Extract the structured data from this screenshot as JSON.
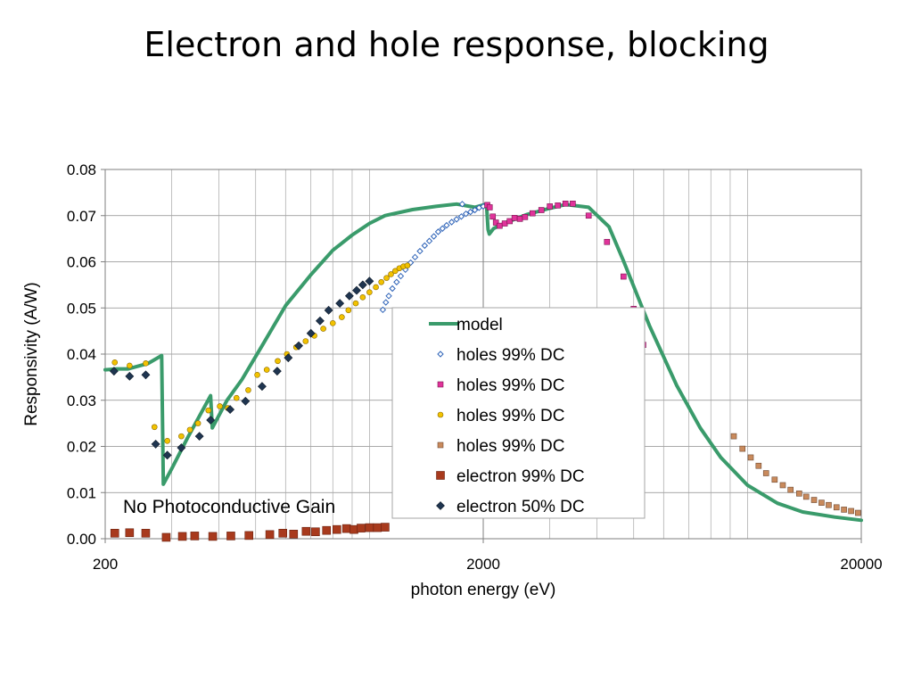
{
  "title": "Electron and hole response, blocking",
  "chart_data": {
    "type": "scatter",
    "xscale": "log",
    "xlim": [
      200,
      20000
    ],
    "ylim": [
      0,
      0.08
    ],
    "xticks": [
      200,
      2000,
      20000
    ],
    "xtick_labels": [
      "200",
      "2000",
      "20000"
    ],
    "yticks": [
      0,
      0.01,
      0.02,
      0.03,
      0.04,
      0.05,
      0.06,
      0.07,
      0.08
    ],
    "ytick_labels": [
      "0.00",
      "0.01",
      "0.02",
      "0.03",
      "0.04",
      "0.05",
      "0.06",
      "0.07",
      "0.08"
    ],
    "xlabel": "photon energy (eV)",
    "ylabel": "Responsivity (A/W)",
    "grid": true,
    "legend_position": "center",
    "annotation": "No Photoconductive Gain",
    "series": [
      {
        "name": "model",
        "kind": "line",
        "color": "#3a9b6b",
        "x": [
          200,
          215,
          230,
          260,
          282,
          285,
          300,
          330,
          380,
          384,
          420,
          460,
          520,
          600,
          700,
          800,
          900,
          1000,
          1100,
          1300,
          1500,
          1700,
          1900,
          2040,
          2060,
          2075,
          2130,
          2300,
          2600,
          3000,
          3300,
          3800,
          4300,
          4700,
          5500,
          6500,
          7500,
          8500,
          10000,
          12000,
          14000,
          17000,
          20000
        ],
        "y": [
          0.0366,
          0.0368,
          0.0368,
          0.038,
          0.0397,
          0.0118,
          0.0152,
          0.0218,
          0.031,
          0.024,
          0.03,
          0.0345,
          0.0418,
          0.0505,
          0.0572,
          0.0625,
          0.0658,
          0.0683,
          0.07,
          0.0713,
          0.072,
          0.0725,
          0.0718,
          0.0725,
          0.067,
          0.066,
          0.0672,
          0.0685,
          0.0702,
          0.0716,
          0.0724,
          0.0718,
          0.0676,
          0.0602,
          0.0462,
          0.0332,
          0.024,
          0.0176,
          0.0116,
          0.0077,
          0.0058,
          0.0047,
          0.004
        ]
      },
      {
        "name": "holes 99% DC",
        "kind": "diamond-open",
        "color": "#2e63b8",
        "x": [
          1085,
          1105,
          1125,
          1150,
          1180,
          1210,
          1245,
          1285,
          1320,
          1360,
          1400,
          1440,
          1480,
          1520,
          1560,
          1600,
          1650,
          1700,
          1750,
          1800,
          1850,
          1900,
          1950,
          2000,
          1760
        ],
        "y": [
          0.0496,
          0.0512,
          0.0526,
          0.0542,
          0.0556,
          0.0569,
          0.0583,
          0.0598,
          0.061,
          0.0623,
          0.0635,
          0.0645,
          0.0655,
          0.0665,
          0.0672,
          0.0679,
          0.0686,
          0.0692,
          0.0698,
          0.0704,
          0.0708,
          0.0712,
          0.0717,
          0.072,
          0.0725
        ]
      },
      {
        "name": "holes 99% DC",
        "kind": "square",
        "color": "#e0339a",
        "x": [
          2050,
          2080,
          2120,
          2160,
          2210,
          2280,
          2350,
          2420,
          2500,
          2580,
          2700,
          2850,
          3000,
          3150,
          3300,
          3450,
          3800,
          4250,
          4700,
          5000,
          5300
        ],
        "y": [
          0.0723,
          0.0718,
          0.0698,
          0.0685,
          0.0678,
          0.0683,
          0.0688,
          0.0695,
          0.0693,
          0.0697,
          0.0705,
          0.0712,
          0.072,
          0.0722,
          0.0726,
          0.0726,
          0.07,
          0.0643,
          0.0568,
          0.0498,
          0.042
        ]
      },
      {
        "name": "holes 99% DC",
        "kind": "circle",
        "color": "#f2c200",
        "x": [
          212,
          232,
          256,
          270,
          292,
          318,
          335,
          352,
          375,
          402,
          422,
          445,
          478,
          505,
          535,
          572,
          605,
          640,
          678,
          715,
          755,
          800,
          845,
          880,
          920,
          960,
          1000,
          1040,
          1075,
          1110,
          1140,
          1170,
          1200,
          1230,
          1260
        ],
        "y": [
          0.0382,
          0.0375,
          0.038,
          0.0242,
          0.0212,
          0.0222,
          0.0236,
          0.025,
          0.0278,
          0.0287,
          0.0283,
          0.0305,
          0.0322,
          0.0355,
          0.0366,
          0.0385,
          0.04,
          0.0415,
          0.0428,
          0.044,
          0.0455,
          0.0467,
          0.048,
          0.0495,
          0.051,
          0.0523,
          0.0534,
          0.0545,
          0.0556,
          0.0565,
          0.0573,
          0.058,
          0.0586,
          0.059,
          0.0592
        ]
      },
      {
        "name": "holes 99% DC",
        "kind": "square-small",
        "color": "#c98a5c",
        "x": [
          9200,
          9700,
          10200,
          10700,
          11200,
          11800,
          12400,
          13000,
          13700,
          14300,
          15000,
          15700,
          16400,
          17200,
          18000,
          18800,
          19600
        ],
        "y": [
          0.0222,
          0.0195,
          0.0176,
          0.0158,
          0.0142,
          0.0128,
          0.0116,
          0.0106,
          0.0098,
          0.0091,
          0.0084,
          0.0078,
          0.0073,
          0.0068,
          0.0063,
          0.006,
          0.0056
        ]
      },
      {
        "name": "electron 99% DC",
        "kind": "square-large",
        "color": "#a83a1d",
        "x": [
          212,
          232,
          256,
          290,
          320,
          345,
          385,
          430,
          480,
          545,
          590,
          630,
          680,
          720,
          770,
          820,
          870,
          910,
          950,
          1000,
          1050,
          1100
        ],
        "y": [
          0.0012,
          0.0013,
          0.0012,
          0.0003,
          0.0005,
          0.0006,
          0.0005,
          0.0006,
          0.0007,
          0.0009,
          0.0012,
          0.001,
          0.0016,
          0.0015,
          0.0018,
          0.002,
          0.0022,
          0.002,
          0.0023,
          0.0024,
          0.0024,
          0.0025
        ]
      },
      {
        "name": "electron 50% DC",
        "kind": "diamond",
        "color": "#1f3550",
        "x": [
          211,
          232,
          256,
          272,
          292,
          318,
          355,
          380,
          428,
          470,
          520,
          570,
          610,
          650,
          700,
          740,
          780,
          835,
          885,
          925,
          960,
          1000
        ],
        "y": [
          0.0363,
          0.0352,
          0.0355,
          0.0205,
          0.0181,
          0.0197,
          0.0222,
          0.0257,
          0.028,
          0.0298,
          0.033,
          0.0363,
          0.0392,
          0.0418,
          0.0445,
          0.0472,
          0.0495,
          0.051,
          0.0526,
          0.0538,
          0.055,
          0.0558
        ]
      }
    ]
  }
}
